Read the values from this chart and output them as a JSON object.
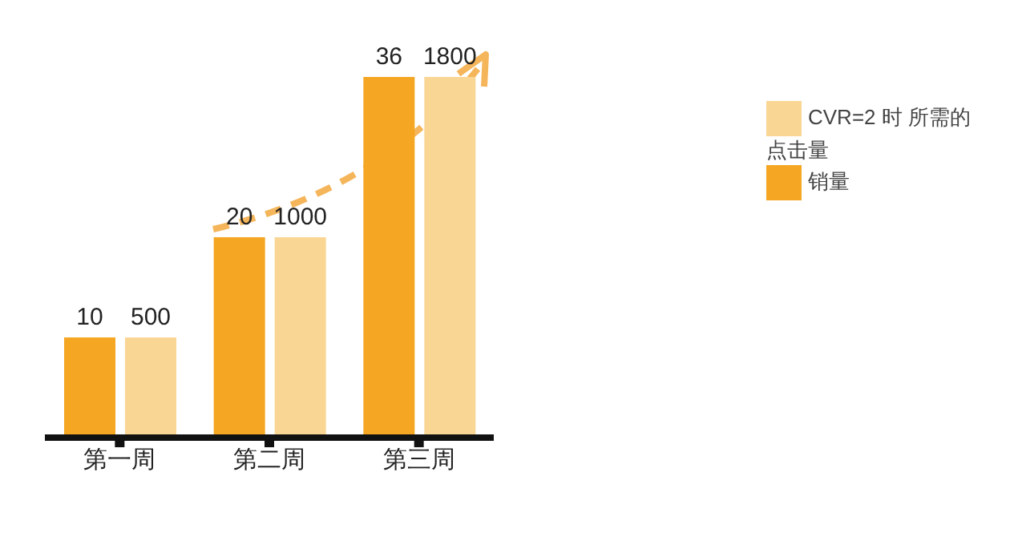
{
  "chart_data": {
    "type": "bar",
    "categories": [
      "第一周",
      "第二周",
      "第三周"
    ],
    "series": [
      {
        "name": "销量",
        "color": "#f5a623",
        "values": [
          10,
          20,
          36
        ]
      },
      {
        "name": "CVR=2 时 所需的点击量",
        "color": "#fad694",
        "values": [
          500,
          1000,
          1800
        ],
        "axis": "y2"
      }
    ],
    "data_labels": true,
    "legend": "top right"
  }
}
